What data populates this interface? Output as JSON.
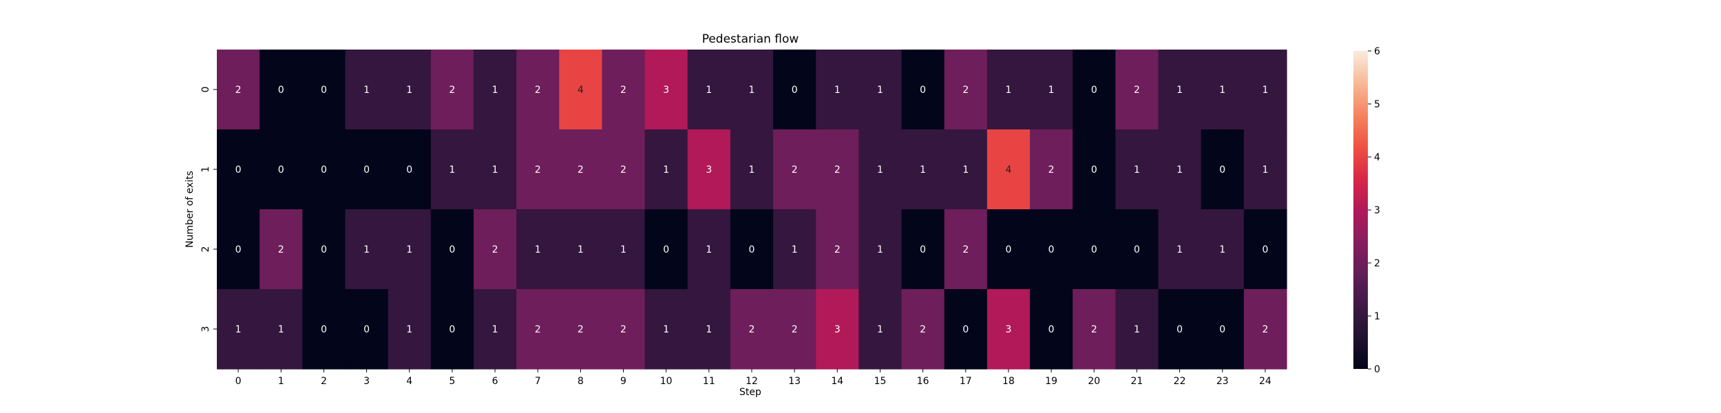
{
  "chart_data": {
    "type": "heatmap",
    "title": "Pedestarian flow",
    "xlabel": "Step",
    "ylabel": "Number of exits",
    "x_categories": [
      "0",
      "1",
      "2",
      "3",
      "4",
      "5",
      "6",
      "7",
      "8",
      "9",
      "10",
      "11",
      "12",
      "13",
      "14",
      "15",
      "16",
      "17",
      "18",
      "19",
      "20",
      "21",
      "22",
      "23",
      "24"
    ],
    "y_categories": [
      "0",
      "1",
      "2",
      "3"
    ],
    "values": [
      [
        2,
        0,
        0,
        1,
        1,
        2,
        1,
        2,
        4,
        2,
        3,
        1,
        1,
        0,
        1,
        1,
        0,
        2,
        1,
        1,
        0,
        2,
        1,
        1,
        1
      ],
      [
        0,
        0,
        0,
        0,
        0,
        1,
        1,
        2,
        2,
        2,
        1,
        3,
        1,
        2,
        2,
        1,
        1,
        1,
        4,
        2,
        0,
        1,
        1,
        0,
        1
      ],
      [
        0,
        2,
        0,
        1,
        1,
        0,
        2,
        1,
        1,
        1,
        0,
        1,
        0,
        1,
        2,
        1,
        0,
        2,
        0,
        0,
        0,
        0,
        1,
        1,
        0
      ],
      [
        1,
        1,
        0,
        0,
        1,
        0,
        1,
        2,
        2,
        2,
        1,
        1,
        2,
        2,
        3,
        1,
        2,
        0,
        3,
        0,
        2,
        1,
        0,
        0,
        2
      ]
    ],
    "colorbar": {
      "min": 0,
      "max": 6,
      "ticks": [
        "0",
        "1",
        "2",
        "3",
        "4",
        "5",
        "6"
      ],
      "colormap": "rocket"
    },
    "grid": false
  }
}
